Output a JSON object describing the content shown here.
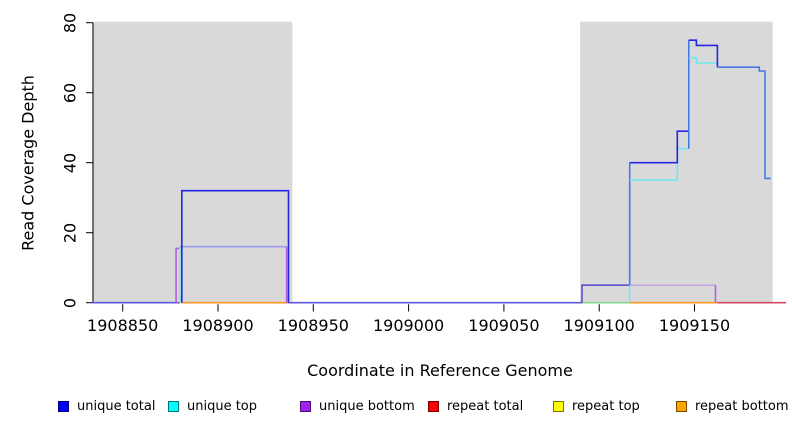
{
  "figure": {
    "x_axis_label": "Coordinate in Reference Genome",
    "y_axis_label": "Read Coverage Depth",
    "x_tick_labels": [
      "1908850",
      "1908900",
      "1908950",
      "1909000",
      "1909050",
      "1909100",
      "1909150"
    ],
    "y_tick_labels": [
      "0",
      "20",
      "40",
      "60",
      "80"
    ],
    "background_color": "#ffffff",
    "repeat_region_color": "#d9d9d9"
  },
  "legend": [
    {
      "label": "unique total",
      "color": "#0000ff"
    },
    {
      "label": "unique top",
      "color": "#00ffff"
    },
    {
      "label": "unique bottom",
      "color": "#a020f0"
    },
    {
      "label": "repeat total",
      "color": "#ff0000"
    },
    {
      "label": "repeat top",
      "color": "#ffff00"
    },
    {
      "label": "repeat bottom",
      "color": "#ffa500"
    }
  ],
  "chart_data": {
    "type": "line",
    "subtype": "step",
    "title": "",
    "xlabel": "Coordinate in Reference Genome",
    "ylabel": "Read Coverage Depth",
    "xlim": [
      1908834,
      1909198
    ],
    "ylim": [
      0,
      80
    ],
    "x_ticks": [
      1908850,
      1908900,
      1908950,
      1909000,
      1909050,
      1909100,
      1909150
    ],
    "y_ticks": [
      0,
      20,
      40,
      60,
      80
    ],
    "grid": false,
    "legend_position": "bottom",
    "repeat_regions": [
      {
        "start": 1908834,
        "end": 1908939
      },
      {
        "start": 1909090,
        "end": 1909191
      }
    ],
    "series": [
      {
        "name": "unique total",
        "color": "#0000ff",
        "points": [
          [
            1908834,
            0
          ],
          [
            1908881,
            0
          ],
          [
            1908881,
            32
          ],
          [
            1908937,
            32
          ],
          [
            1908937,
            0
          ],
          [
            1909091,
            0
          ],
          [
            1909091,
            5
          ],
          [
            1909116,
            5
          ],
          [
            1909116,
            40
          ],
          [
            1909141,
            40
          ],
          [
            1909141,
            49
          ],
          [
            1909147,
            49
          ],
          [
            1909147,
            75
          ],
          [
            1909151,
            75
          ],
          [
            1909151,
            73.5
          ],
          [
            1909162,
            73.5
          ],
          [
            1909162,
            67.3
          ],
          [
            1909184,
            67.3
          ],
          [
            1909184,
            66.2
          ],
          [
            1909187,
            66.2
          ],
          [
            1909187,
            35.5
          ],
          [
            1909190,
            35.5
          ]
        ]
      },
      {
        "name": "unique top",
        "color": "#00ffff",
        "points": [
          [
            1908834,
            0
          ],
          [
            1908880,
            0
          ],
          [
            1908880,
            16
          ],
          [
            1908936,
            16
          ],
          [
            1908936,
            0
          ],
          [
            1909116,
            0
          ],
          [
            1909116,
            35
          ],
          [
            1909141,
            35
          ],
          [
            1909141,
            44
          ],
          [
            1909147,
            44
          ],
          [
            1909147,
            70
          ],
          [
            1909151,
            70
          ],
          [
            1909151,
            68.5
          ],
          [
            1909162,
            68.5
          ],
          [
            1909162,
            67.3
          ],
          [
            1909184,
            67.3
          ],
          [
            1909184,
            66.2
          ],
          [
            1909187,
            66.2
          ],
          [
            1909187,
            35.5
          ],
          [
            1909190,
            35.5
          ]
        ]
      },
      {
        "name": "unique bottom",
        "color": "#a020f0",
        "points": [
          [
            1908834,
            0
          ],
          [
            1908878,
            0
          ],
          [
            1908878,
            15.5
          ],
          [
            1908936,
            15.5
          ],
          [
            1908936,
            0
          ],
          [
            1909091,
            0
          ],
          [
            1909091,
            5
          ],
          [
            1909161,
            5
          ],
          [
            1909161,
            0
          ],
          [
            1909198,
            0
          ]
        ]
      },
      {
        "name": "repeat total",
        "color": "#ff0000",
        "points": [
          [
            1908834,
            0
          ],
          [
            1909198,
            0
          ]
        ]
      },
      {
        "name": "repeat top",
        "color": "#ffff00",
        "points": [
          [
            1908834,
            0
          ],
          [
            1909198,
            0
          ]
        ]
      },
      {
        "name": "repeat bottom",
        "color": "#ffa500",
        "points": [
          [
            1908834,
            0
          ],
          [
            1909198,
            0
          ]
        ]
      }
    ],
    "render_segments": [
      {
        "name": "baseline-rose-tail",
        "color": "#d04868",
        "pts": [
          [
            1909162,
            0
          ],
          [
            1909198,
            0
          ]
        ]
      },
      {
        "name": "baseline-indigo-left",
        "color": "#6159dd",
        "pts": [
          [
            1908834,
            0
          ],
          [
            1908880,
            0
          ]
        ]
      },
      {
        "name": "baseline-indigo-mid",
        "color": "#6159dd",
        "pts": [
          [
            1908937,
            0
          ],
          [
            1909091,
            0
          ]
        ]
      },
      {
        "name": "baseline-green",
        "color": "#84d88c",
        "pts": [
          [
            1909091,
            0
          ],
          [
            1909116,
            0
          ]
        ]
      },
      {
        "name": "baseline-orange-left",
        "color": "#ff9a1c",
        "pts": [
          [
            1908881,
            0
          ],
          [
            1908937,
            0
          ]
        ]
      },
      {
        "name": "baseline-orange-right",
        "color": "#ff9a1c",
        "pts": [
          [
            1909116,
            0
          ],
          [
            1909162,
            0
          ]
        ]
      },
      {
        "name": "purple-jog-left",
        "color": "#ae62e0",
        "pts": [
          [
            1908878,
            0
          ],
          [
            1908878,
            15.5
          ],
          [
            1908880,
            15.5
          ]
        ]
      },
      {
        "name": "cyan-vert-left-block",
        "color": "#76e4ee",
        "pts": [
          [
            1908880,
            0
          ],
          [
            1908880,
            16
          ]
        ]
      },
      {
        "name": "lavender-plateau-16",
        "color": "#9b9ded",
        "pts": [
          [
            1908880,
            16
          ],
          [
            1908936,
            16
          ]
        ]
      },
      {
        "name": "violet-vert-left-block",
        "color": "#ae62e0",
        "pts": [
          [
            1908936,
            16
          ],
          [
            1908936,
            0
          ]
        ]
      },
      {
        "name": "blue-box-32",
        "color": "#2525e8",
        "pts": [
          [
            1908881,
            0
          ],
          [
            1908881,
            32
          ],
          [
            1908937,
            32
          ],
          [
            1908937,
            0
          ]
        ]
      },
      {
        "name": "indigo-step-5",
        "color": "#5b50d8",
        "pts": [
          [
            1909091,
            0
          ],
          [
            1909091,
            5
          ],
          [
            1909116,
            5
          ]
        ]
      },
      {
        "name": "lavender-line-5",
        "color": "#c9a4e4",
        "pts": [
          [
            1909116,
            5
          ],
          [
            1909161,
            5
          ]
        ]
      },
      {
        "name": "violet-vert-right",
        "color": "#ae62e0",
        "pts": [
          [
            1909161,
            5
          ],
          [
            1909161,
            0
          ]
        ]
      },
      {
        "name": "cyan-vert-35",
        "color": "#76e4ee",
        "pts": [
          [
            1909116,
            0
          ],
          [
            1909116,
            35
          ]
        ]
      },
      {
        "name": "bright-vert-40",
        "color": "#447ae8",
        "pts": [
          [
            1909116,
            5
          ],
          [
            1909116,
            40
          ]
        ]
      },
      {
        "name": "cyan-mid-steps",
        "color": "#76e4ee",
        "pts": [
          [
            1909116,
            35
          ],
          [
            1909141,
            35
          ],
          [
            1909141,
            44
          ],
          [
            1909147,
            44
          ]
        ]
      },
      {
        "name": "blue-mid-steps",
        "color": "#2525e8",
        "pts": [
          [
            1909116,
            40
          ],
          [
            1909141,
            40
          ],
          [
            1909141,
            49
          ],
          [
            1909147,
            49
          ]
        ]
      },
      {
        "name": "bright-vert-75",
        "color": "#447ae8",
        "pts": [
          [
            1909147,
            44
          ],
          [
            1909147,
            75
          ]
        ]
      },
      {
        "name": "cyan-high-steps",
        "color": "#76e4ee",
        "pts": [
          [
            1909147,
            70
          ],
          [
            1909151,
            70
          ],
          [
            1909151,
            68.5
          ],
          [
            1909162,
            68.5
          ]
        ]
      },
      {
        "name": "blue-high-steps",
        "color": "#2525e8",
        "pts": [
          [
            1909147,
            75
          ],
          [
            1909151,
            75
          ],
          [
            1909151,
            73.5
          ],
          [
            1909162,
            73.5
          ],
          [
            1909162,
            67.3
          ]
        ]
      },
      {
        "name": "bright-tail",
        "color": "#447ae8",
        "pts": [
          [
            1909162,
            67.3
          ],
          [
            1909184,
            67.3
          ],
          [
            1909184,
            66.2
          ],
          [
            1909187,
            66.2
          ],
          [
            1909187,
            35.5
          ],
          [
            1909190,
            35.5
          ]
        ]
      }
    ]
  }
}
